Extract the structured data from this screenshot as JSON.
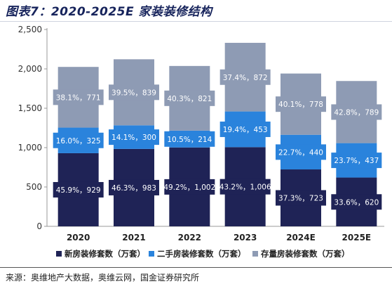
{
  "figure": {
    "title": "图表7：2020-2025E 家装装修结构",
    "source": "来源：奥维地产大数据，奥维云网，国金证券研究所"
  },
  "colors": {
    "new": "#1f2356",
    "second": "#2a83dc",
    "stock": "#8e9bb4",
    "title": "#17245c"
  },
  "chart_data": {
    "type": "bar",
    "stacked": true,
    "categories": [
      "2020",
      "2021",
      "2022",
      "2023",
      "2024E",
      "2025E"
    ],
    "series": [
      {
        "name": "新房装修套数（万套）",
        "values": [
          929,
          983,
          1002,
          1006,
          723,
          620
        ],
        "labels": [
          "45.9%，929",
          "46.3%，983",
          "49.2%，1,002",
          "43.2%，1,006",
          "37.3%，723",
          "33.6%，620"
        ]
      },
      {
        "name": "二手房装修套数（万套）",
        "values": [
          325,
          300,
          214,
          453,
          440,
          437
        ],
        "labels": [
          "16.0%，325",
          "14.1%，300",
          "10.5%，214",
          "19.4%，453",
          "22.7%，440",
          "23.7%，437"
        ]
      },
      {
        "name": "存量房装修套数（万套）",
        "values": [
          771,
          839,
          821,
          872,
          778,
          789
        ],
        "labels": [
          "38.1%，771",
          "39.5%，839",
          "40.3%，821",
          "37.4%，872",
          "40.1%，778",
          "42.8%，789"
        ]
      }
    ],
    "ylim": [
      0,
      2500
    ],
    "yticks": [
      "0",
      "500",
      "1,000",
      "1,500",
      "2,000",
      "2,500"
    ],
    "grid": false,
    "legend": "bottom"
  }
}
